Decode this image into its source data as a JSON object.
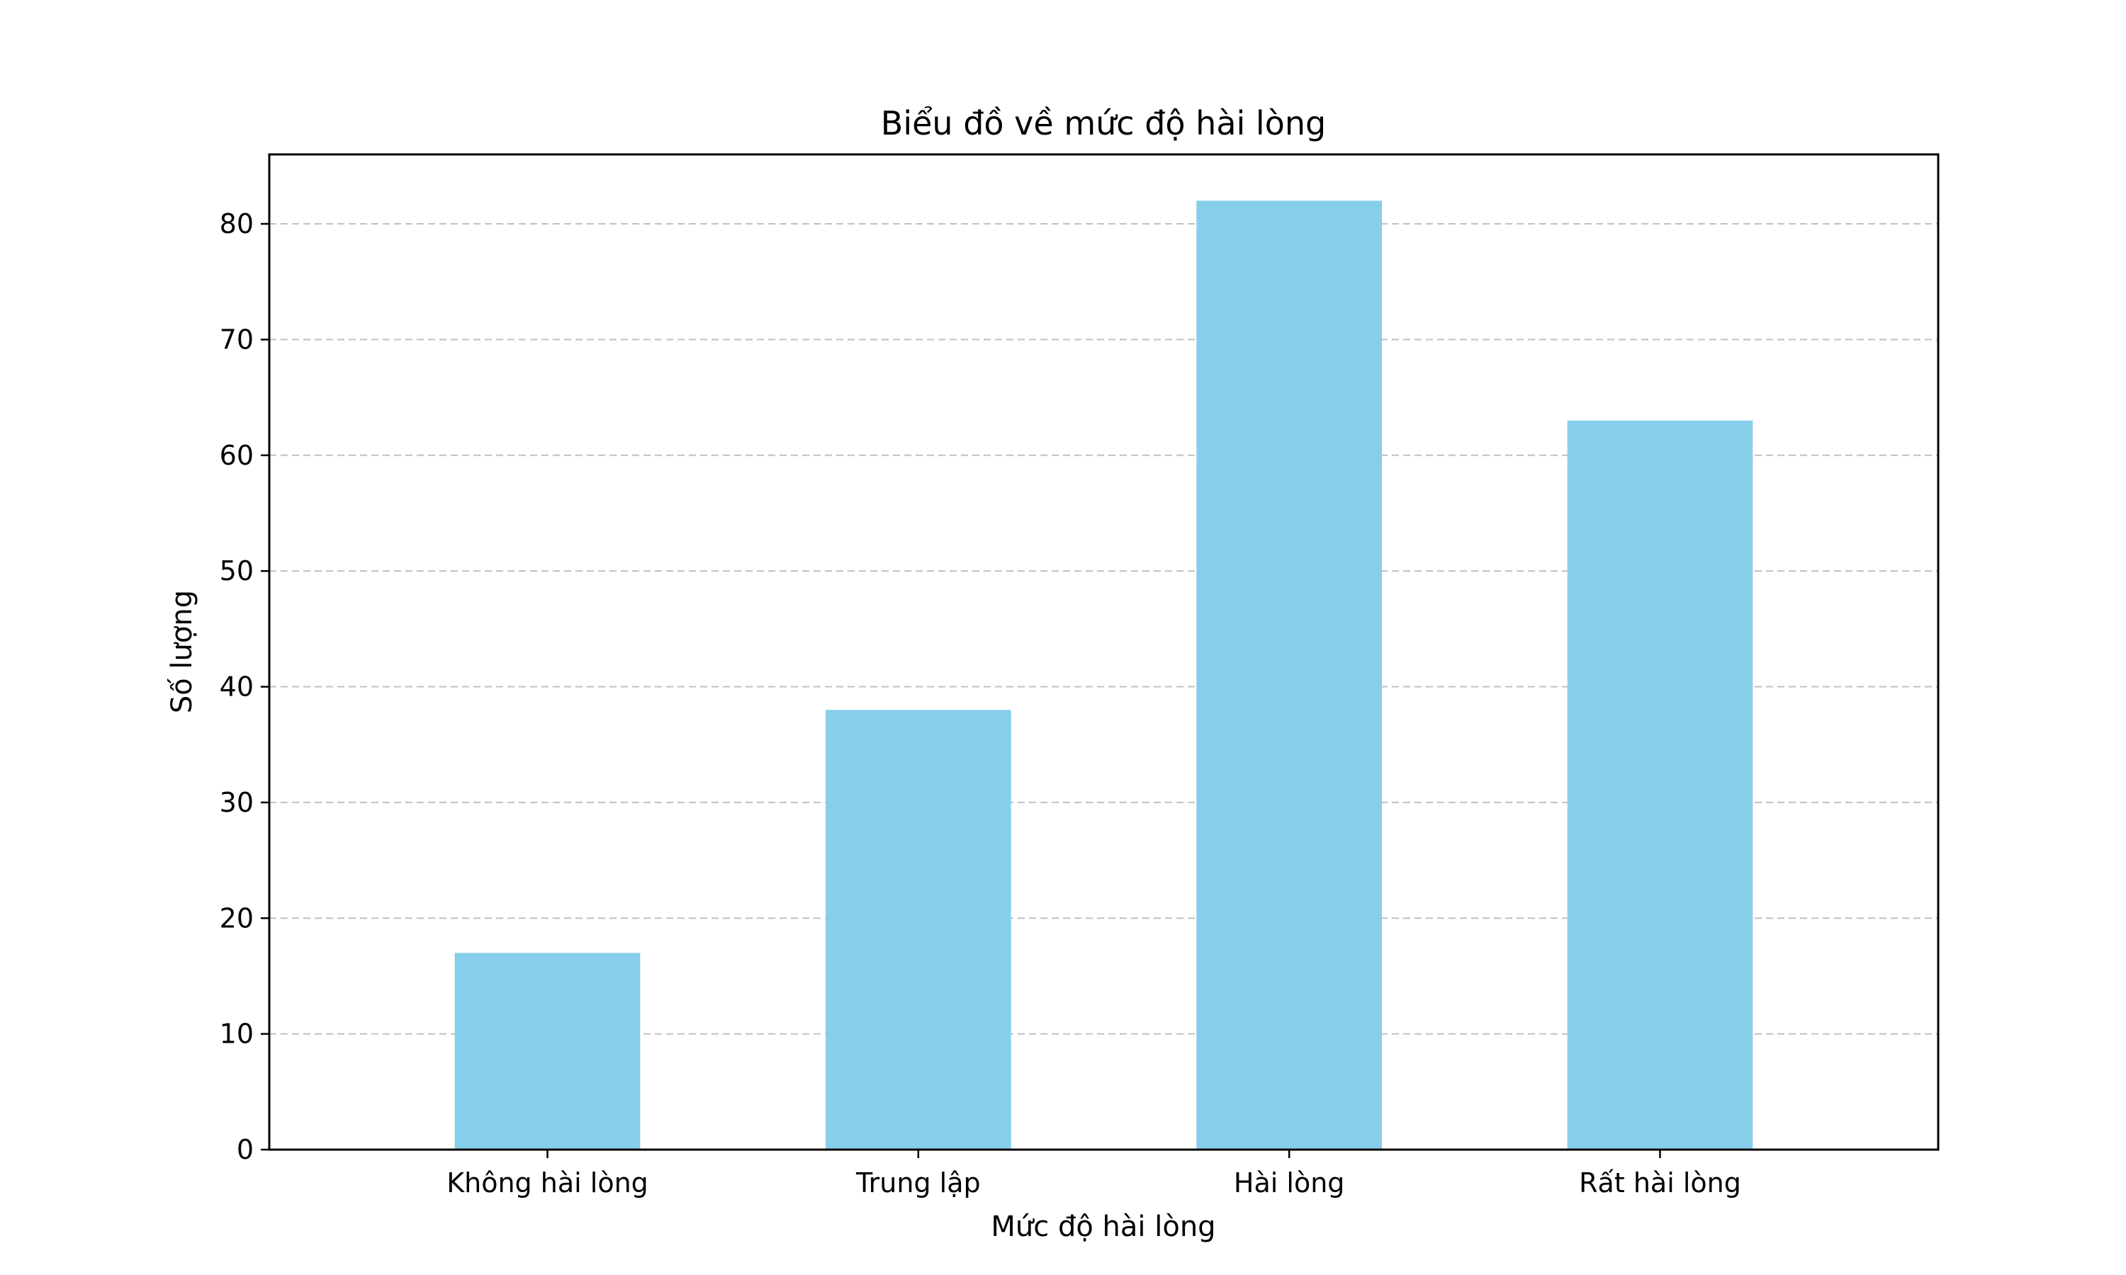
{
  "chart_data": {
    "type": "bar",
    "title": "Biểu đồ về mức độ hài lòng",
    "xlabel": "Mức độ hài lòng",
    "ylabel": "Số lượng",
    "categories": [
      "Không hài lòng",
      "Trung lập",
      "Hài lòng",
      "Rất hài lòng"
    ],
    "values": [
      17,
      38,
      82,
      63
    ],
    "ylim": [
      0,
      86
    ],
    "yticks": [
      0,
      10,
      20,
      30,
      40,
      50,
      60,
      70,
      80
    ],
    "grid": "y-dashed",
    "legend": "none",
    "bar_color": "#87CEEB",
    "grid_color": "#c0c0c0"
  }
}
